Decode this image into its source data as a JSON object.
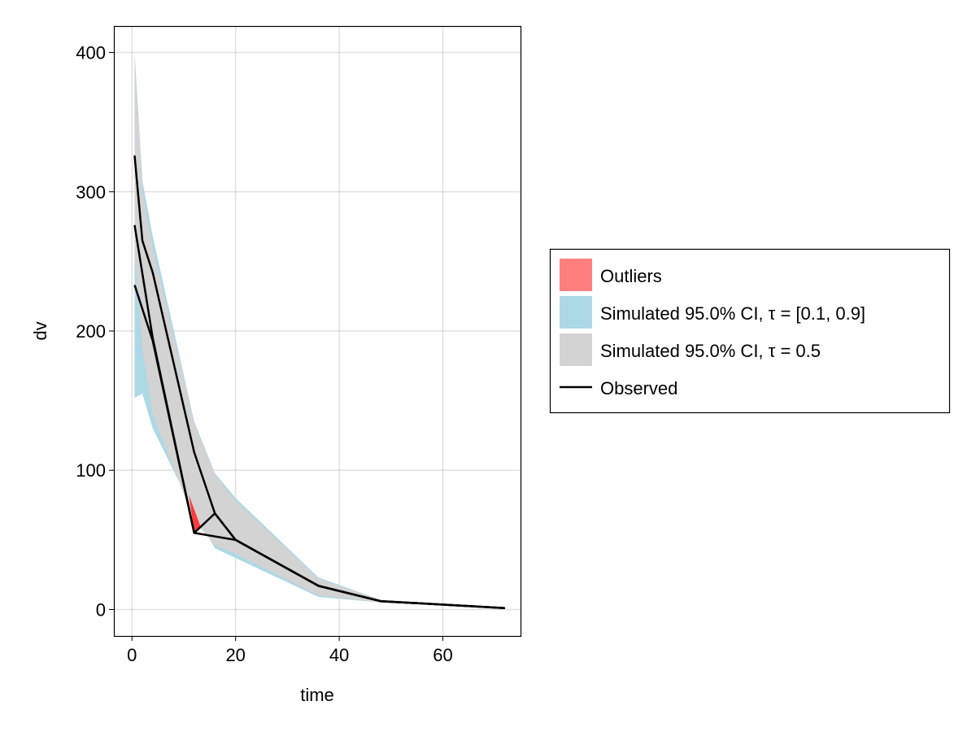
{
  "chart_data": {
    "type": "area",
    "title": "",
    "xlabel": "time",
    "ylabel": "dv",
    "xlim": [
      -3.5,
      75
    ],
    "ylim": [
      -19,
      419
    ],
    "xticks": [
      0,
      20,
      40,
      60
    ],
    "yticks": [
      0,
      100,
      200,
      300,
      400
    ],
    "grid": true,
    "legend_position": "right",
    "colors": {
      "outliers": "#ff7f7f",
      "outlier_fill": "#ff3b3b",
      "ci_outer": "#add8e6",
      "ci_median": "#d3d3d3",
      "observed": "#000000"
    },
    "legend": [
      "Outliers",
      "Simulated 95.0% CI, τ = [0.1, 0.9]",
      "Simulated 95.0% CI, τ = 0.5",
      "Observed"
    ],
    "bands": [
      {
        "name": "Simulated 95.0% CI, τ = [0.1, 0.9]",
        "x": [
          0.5,
          2,
          4,
          12,
          16,
          20,
          36,
          48,
          72
        ],
        "upper": [
          400,
          308,
          268,
          135,
          98,
          80,
          23,
          7,
          1.2
        ],
        "lower": [
          152,
          155,
          130,
          70,
          44,
          37,
          9,
          5,
          0.8
        ]
      },
      {
        "name": "Simulated 95.0% CI, τ = 0.5",
        "x": [
          0.5,
          2,
          4,
          12,
          16,
          20,
          36,
          48,
          72
        ],
        "upper": [
          395,
          300,
          260,
          134,
          97,
          78,
          22,
          7,
          1.2
        ],
        "lower": [
          255,
          188,
          140,
          64,
          46,
          40,
          10,
          5,
          0.9
        ]
      }
    ],
    "observed": [
      {
        "x": [
          0.5,
          2,
          4,
          12,
          16,
          20,
          36,
          48,
          72
        ],
        "y": [
          326,
          265,
          242,
          113,
          69,
          50,
          17,
          6,
          1
        ]
      },
      {
        "x": [
          0.5,
          4,
          12,
          16,
          20,
          36,
          48,
          72
        ],
        "y": [
          276,
          195,
          55,
          69,
          50,
          17,
          6,
          1
        ]
      },
      {
        "x": [
          0.5,
          4,
          12,
          20,
          36,
          48,
          72
        ],
        "y": [
          233,
          193,
          55,
          50,
          17,
          6,
          1
        ]
      }
    ],
    "outliers": [
      {
        "x": [
          11,
          12,
          13.2
        ],
        "y": [
          82,
          55,
          60
        ]
      }
    ]
  }
}
